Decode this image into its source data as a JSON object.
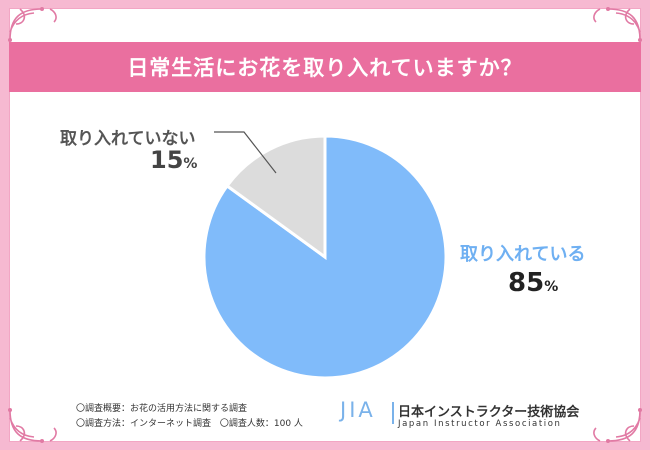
{
  "title": "日常生活にお花を取り入れていますか？",
  "chart_data": {
    "type": "pie",
    "series": [
      {
        "name": "取り入れている",
        "value": 85,
        "color": "#80bbfa"
      },
      {
        "name": "取り入れていない",
        "value": 15,
        "color": "#dcdcdc"
      }
    ],
    "unit": "%",
    "title": "日常生活にお花を取り入れていますか？"
  },
  "labels": {
    "yes_name": "取り入れている",
    "yes_value": "85",
    "no_name": "取り入れていない",
    "no_value": "15",
    "unit": "%"
  },
  "survey": {
    "line1": "〇調査概要：お花の活用方法に関する調査",
    "line2a": "〇調査方法：インターネット調査",
    "line2b": "〇調査人数：100 人"
  },
  "logo": {
    "mark": "JIA",
    "name_ja": "日本インストラクター技術協会",
    "name_en": "Japan Instructor Association"
  },
  "colors": {
    "accent": "#ea6f9f",
    "frame": "#f6b9d1",
    "yes": "#80bbfa",
    "no": "#dcdcdc"
  }
}
